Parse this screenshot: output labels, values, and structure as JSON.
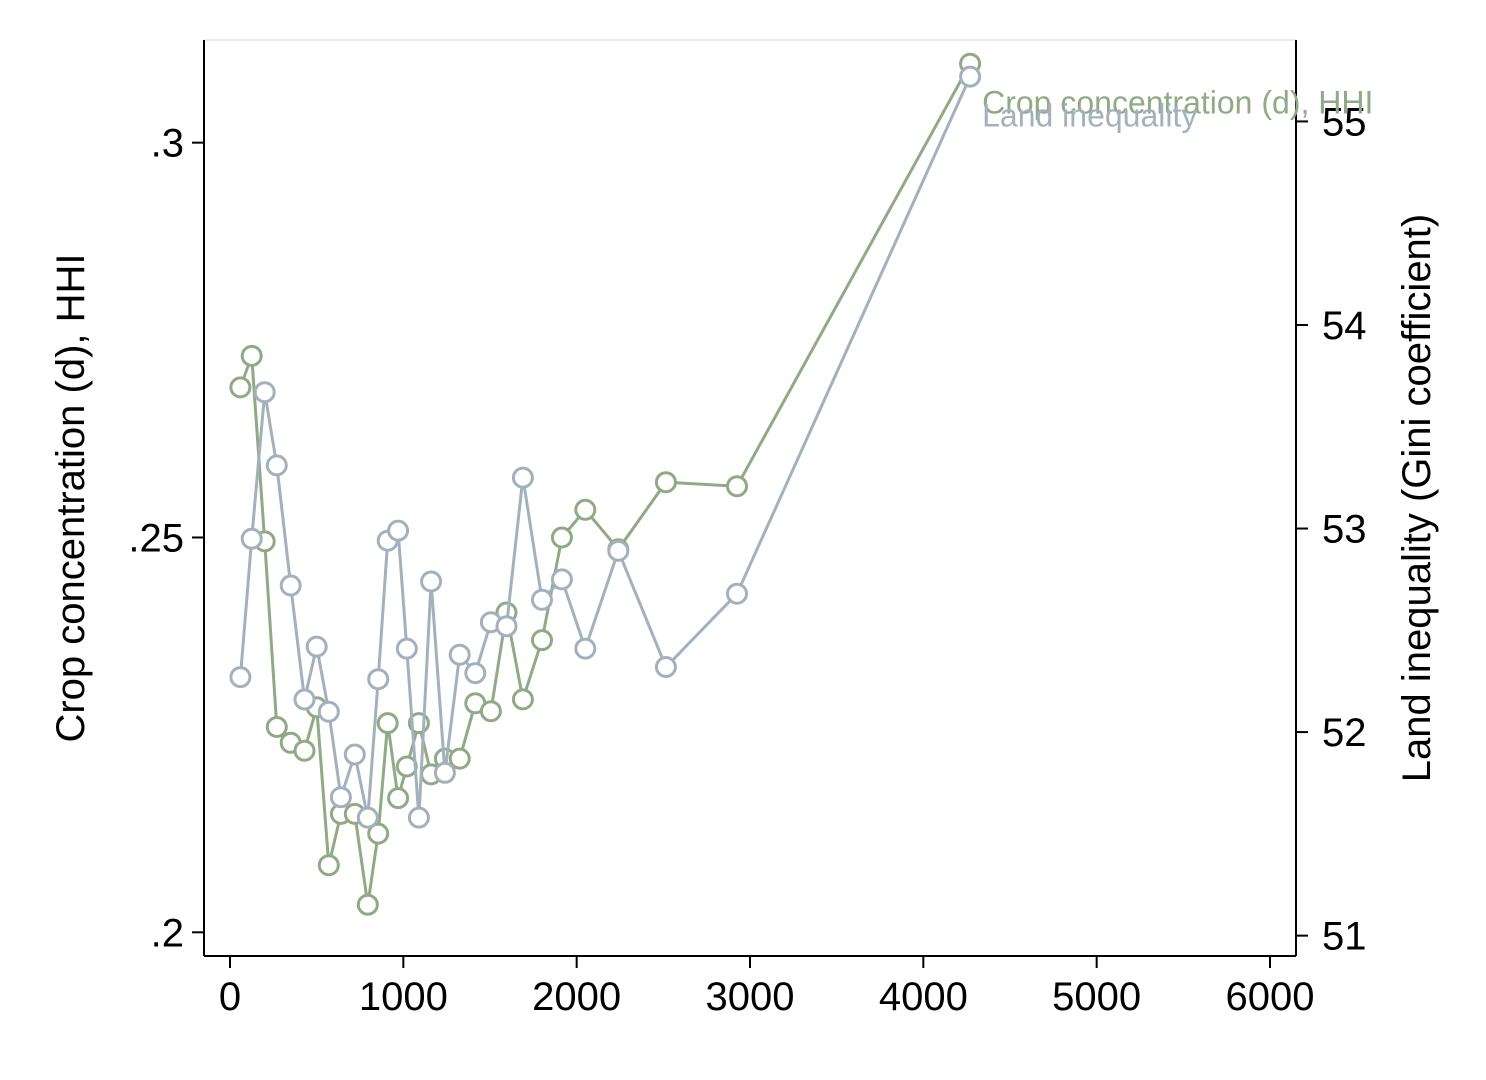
{
  "chart_data": {
    "type": "line",
    "xlabel": "",
    "y_left_label": "Crop concentration (d), HHI",
    "y_right_label": "Land inequality (Gini coefficient)",
    "xlim": [
      -150,
      6150
    ],
    "x_ticks": [
      0,
      1000,
      2000,
      3000,
      4000,
      5000,
      6000
    ],
    "x_tick_labels": [
      "0",
      "1000",
      "2000",
      "3000",
      "4000",
      "5000",
      "6000"
    ],
    "y_left_lim": [
      0.197,
      0.313
    ],
    "y_left_ticks": [
      0.2,
      0.25,
      0.3
    ],
    "y_left_tick_labels": [
      ".2",
      ".25",
      ".3"
    ],
    "y_right_lim": [
      50.9,
      55.4
    ],
    "y_right_ticks": [
      51,
      52,
      53,
      54,
      55
    ],
    "y_right_tick_labels": [
      "51",
      "52",
      "53",
      "54",
      "55"
    ],
    "grid": false,
    "series": [
      {
        "name": "Crop concentration (d), HHI",
        "axis": "left",
        "color": "#8faa84",
        "x": [
          60,
          125,
          200,
          270,
          350,
          430,
          500,
          570,
          640,
          720,
          795,
          855,
          910,
          970,
          1020,
          1090,
          1160,
          1240,
          1325,
          1415,
          1505,
          1595,
          1690,
          1800,
          1915,
          2050,
          2240,
          2515,
          2925,
          4270
        ],
        "y": [
          0.269,
          0.273,
          0.2495,
          0.226,
          0.224,
          0.223,
          0.2285,
          0.2085,
          0.215,
          0.215,
          0.2035,
          0.2125,
          0.2265,
          0.217,
          0.221,
          0.2265,
          0.22,
          0.222,
          0.222,
          0.229,
          0.228,
          0.2405,
          0.2295,
          0.237,
          0.25,
          0.2535,
          0.2485,
          0.257,
          0.2565,
          0.31
        ]
      },
      {
        "name": "Land inequality",
        "axis": "right",
        "color": "#a3b1bc",
        "x": [
          60,
          125,
          200,
          270,
          350,
          430,
          500,
          570,
          640,
          720,
          795,
          855,
          910,
          970,
          1020,
          1090,
          1160,
          1240,
          1325,
          1415,
          1505,
          1595,
          1690,
          1800,
          1915,
          2050,
          2240,
          2515,
          2925,
          4270
        ],
        "y": [
          52.27,
          52.95,
          53.67,
          53.31,
          52.72,
          52.16,
          52.42,
          52.1,
          51.68,
          51.89,
          51.58,
          52.26,
          52.94,
          52.99,
          52.41,
          51.58,
          52.74,
          51.8,
          52.38,
          52.29,
          52.54,
          52.52,
          53.25,
          52.65,
          52.75,
          52.41,
          52.89,
          52.32,
          52.68,
          55.22
        ]
      }
    ]
  }
}
